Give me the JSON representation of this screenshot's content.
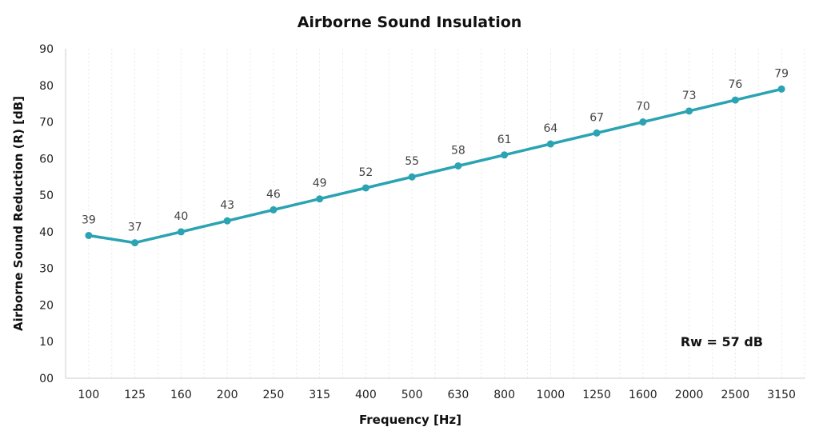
{
  "chart_data": {
    "type": "line",
    "title": "Airborne Sound Insulation",
    "xlabel": "Frequency [Hz]",
    "ylabel": "Airborne Sound Reduction (R) [dB]",
    "categories": [
      "100",
      "125",
      "160",
      "200",
      "250",
      "315",
      "400",
      "500",
      "630",
      "800",
      "1000",
      "1250",
      "1600",
      "2000",
      "2500",
      "3150"
    ],
    "series": [
      {
        "values": [
          39,
          37,
          40,
          43,
          46,
          49,
          52,
          55,
          58,
          61,
          64,
          67,
          70,
          73,
          76,
          79
        ],
        "value_labels": [
          "39",
          "37",
          "40",
          "43",
          "46",
          "49",
          "52",
          "55",
          "58",
          "61",
          "64",
          "67",
          "70",
          "73",
          "76",
          "79"
        ]
      }
    ],
    "ylim": [
      0,
      90
    ],
    "y_ticks": [
      "00",
      "10",
      "20",
      "30",
      "40",
      "50",
      "60",
      "70",
      "80",
      "90"
    ],
    "grid": "vertical dotted",
    "annotation": "Rw = 57 dB",
    "line_color": "#2ba3b2",
    "axis_color": "#cccccc",
    "grid_color": "#e6e6e6"
  }
}
